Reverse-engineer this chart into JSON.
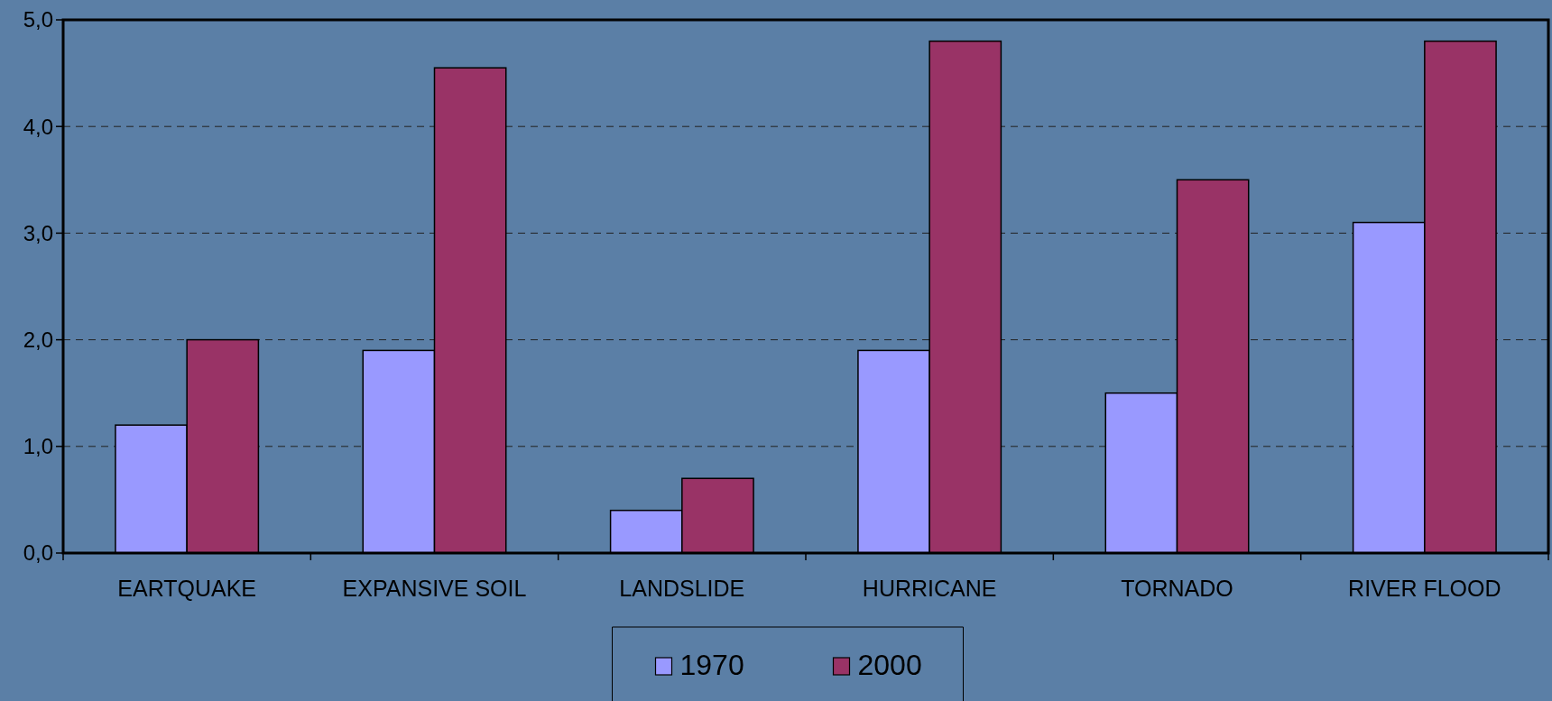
{
  "chart_data": {
    "type": "bar",
    "categories": [
      "EARTQUAKE",
      "EXPANSIVE SOIL",
      "LANDSLIDE",
      "HURRICANE",
      "TORNADO",
      "RIVER FLOOD"
    ],
    "series": [
      {
        "name": "1970",
        "color": "#9999ff",
        "values": [
          1.2,
          1.9,
          0.4,
          1.9,
          1.5,
          3.1
        ]
      },
      {
        "name": "2000",
        "color": "#993366",
        "values": [
          2.0,
          4.55,
          0.7,
          4.8,
          3.5,
          4.8
        ]
      }
    ],
    "ylim": [
      0,
      5
    ],
    "yticks": [
      {
        "value": 0,
        "label": "0,0"
      },
      {
        "value": 1,
        "label": "1,0"
      },
      {
        "value": 2,
        "label": "2,0"
      },
      {
        "value": 3,
        "label": "3,0"
      },
      {
        "value": 4,
        "label": "4,0"
      },
      {
        "value": 5,
        "label": "5,0"
      }
    ],
    "grid": "y",
    "legend": "bottom"
  }
}
